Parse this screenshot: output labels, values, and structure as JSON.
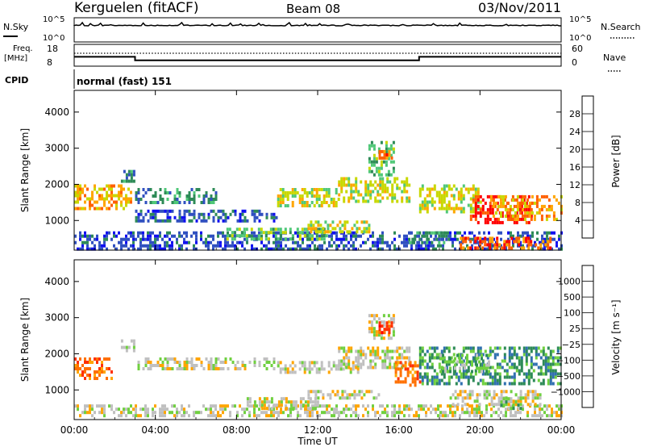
{
  "header": {
    "station": "Kerguelen (fitACF)",
    "beam": "Beam 08",
    "date": "03/Nov/2011"
  },
  "strips": {
    "nsky": {
      "label": "N.Sky",
      "ticks": [
        "10^5",
        "10^0"
      ],
      "right_label": "N.Search",
      "right_ticks": [
        "10^5",
        "10^0"
      ]
    },
    "freq": {
      "label": "Freq.",
      "unit": "[MHz]",
      "ticks": [
        "18",
        "8"
      ],
      "right_label": "Nave",
      "right_ticks": [
        "60",
        "0"
      ],
      "values": [
        {
          "start": "00:00",
          "end": "03:00",
          "value": 12
        },
        {
          "start": "03:00",
          "end": "17:00",
          "value": 10.2
        },
        {
          "start": "17:00",
          "end": "24:00",
          "value": 12
        }
      ]
    },
    "cpid": {
      "label": "CPID",
      "value": "normal (fast) 151"
    }
  },
  "chart_data": [
    {
      "type": "heatmap",
      "ylabel": "Slant Range [km]",
      "ylim": [
        180,
        4600
      ],
      "yticks": [
        "1000",
        "2000",
        "3000",
        "4000"
      ],
      "xlim": [
        "00:00",
        "24:00"
      ],
      "colorbar": {
        "label": "Power [dB]",
        "ticks": [
          "4",
          "8",
          "12",
          "16",
          "20",
          "24",
          "28"
        ],
        "colors": [
          "#1010f0",
          "#3050c0",
          "#2e8b57",
          "#50c878",
          "#c8d800",
          "#ffa500",
          "#ff6000",
          "#ff0000"
        ]
      },
      "regions": [
        {
          "t": [
            0.0,
            2.8
          ],
          "r": [
            1300,
            2000
          ],
          "level": 5
        },
        {
          "t": [
            0.0,
            24.0
          ],
          "r": [
            250,
            700
          ],
          "level": 1
        },
        {
          "t": [
            2.3,
            2.9
          ],
          "r": [
            2050,
            2400
          ],
          "level": 2
        },
        {
          "t": [
            3.0,
            7.0
          ],
          "r": [
            1500,
            1900
          ],
          "level": 2
        },
        {
          "t": [
            3.0,
            10.0
          ],
          "r": [
            1000,
            1300
          ],
          "level": 1
        },
        {
          "t": [
            7.5,
            12.5
          ],
          "r": [
            450,
            800
          ],
          "level": 3
        },
        {
          "t": [
            10.0,
            13.0
          ],
          "r": [
            1400,
            1900
          ],
          "level": 4
        },
        {
          "t": [
            11.5,
            14.5
          ],
          "r": [
            700,
            1000
          ],
          "level": 4
        },
        {
          "t": [
            13.0,
            16.5
          ],
          "r": [
            1500,
            2200
          ],
          "level": 4
        },
        {
          "t": [
            14.5,
            15.8
          ],
          "r": [
            2300,
            3200
          ],
          "level": 3
        },
        {
          "t": [
            15.0,
            15.6
          ],
          "r": [
            2700,
            2950
          ],
          "level": 6
        },
        {
          "t": [
            17.0,
            20.0
          ],
          "r": [
            1200,
            2000
          ],
          "level": 4
        },
        {
          "t": [
            19.5,
            22.5
          ],
          "r": [
            900,
            1700
          ],
          "level": 7
        },
        {
          "t": [
            20.5,
            24.0
          ],
          "r": [
            1000,
            1700
          ],
          "level": 5
        },
        {
          "t": [
            19.0,
            23.5
          ],
          "r": [
            250,
            550
          ],
          "level": 6
        },
        {
          "t": [
            16.5,
            18.5
          ],
          "r": [
            400,
            700
          ],
          "level": 2
        }
      ]
    },
    {
      "type": "heatmap",
      "ylabel": "Slant Range [km]",
      "ylim": [
        180,
        4600
      ],
      "yticks": [
        "1000",
        "2000",
        "3000",
        "4000"
      ],
      "xlim": [
        "00:00",
        "24:00"
      ],
      "xticks": [
        "00:00",
        "04:00",
        "08:00",
        "12:00",
        "16:00",
        "20:00",
        "00:00"
      ],
      "xlabel": "Time UT",
      "colorbar": {
        "label": "Velocity [m s⁻¹]",
        "ticks": [
          "1000",
          "500",
          "100",
          "25",
          "−25",
          "−100",
          "−500",
          "−1000"
        ],
        "colors": [
          "#2040c0",
          "#3070b0",
          "#2e8b57",
          "#70d040",
          "#c0c0c0",
          "#ffa500",
          "#ff7000",
          "#ff3000",
          "#ff0000"
        ]
      },
      "regions": [
        {
          "t": [
            0.0,
            1.8
          ],
          "r": [
            1300,
            1900
          ],
          "level": 6
        },
        {
          "t": [
            0.0,
            24.0
          ],
          "r": [
            250,
            600
          ],
          "level": 4
        },
        {
          "t": [
            2.3,
            2.9
          ],
          "r": [
            2050,
            2400
          ],
          "level": 4
        },
        {
          "t": [
            3.0,
            10.0
          ],
          "r": [
            1600,
            1900
          ],
          "level": 4
        },
        {
          "t": [
            8.5,
            12.0
          ],
          "r": [
            450,
            800
          ],
          "level": 4
        },
        {
          "t": [
            10.0,
            14.0
          ],
          "r": [
            1500,
            1800
          ],
          "level": 4
        },
        {
          "t": [
            11.5,
            15.0
          ],
          "r": [
            750,
            1000
          ],
          "level": 4
        },
        {
          "t": [
            13.0,
            16.5
          ],
          "r": [
            1600,
            2200
          ],
          "level": 4
        },
        {
          "t": [
            14.5,
            15.7
          ],
          "r": [
            2400,
            3100
          ],
          "level": 4
        },
        {
          "t": [
            15.0,
            15.6
          ],
          "r": [
            2600,
            2900
          ],
          "level": 7
        },
        {
          "t": [
            15.8,
            17.0
          ],
          "r": [
            1100,
            1800
          ],
          "level": 6
        },
        {
          "t": [
            17.0,
            24.0
          ],
          "r": [
            1200,
            2200
          ],
          "level": 2
        },
        {
          "t": [
            18.0,
            20.5
          ],
          "r": [
            1500,
            2000
          ],
          "level": 3
        },
        {
          "t": [
            18.5,
            23.0
          ],
          "r": [
            600,
            1000
          ],
          "level": 4
        },
        {
          "t": [
            21.0,
            22.0
          ],
          "r": [
            500,
            800
          ],
          "level": 3
        }
      ]
    }
  ]
}
